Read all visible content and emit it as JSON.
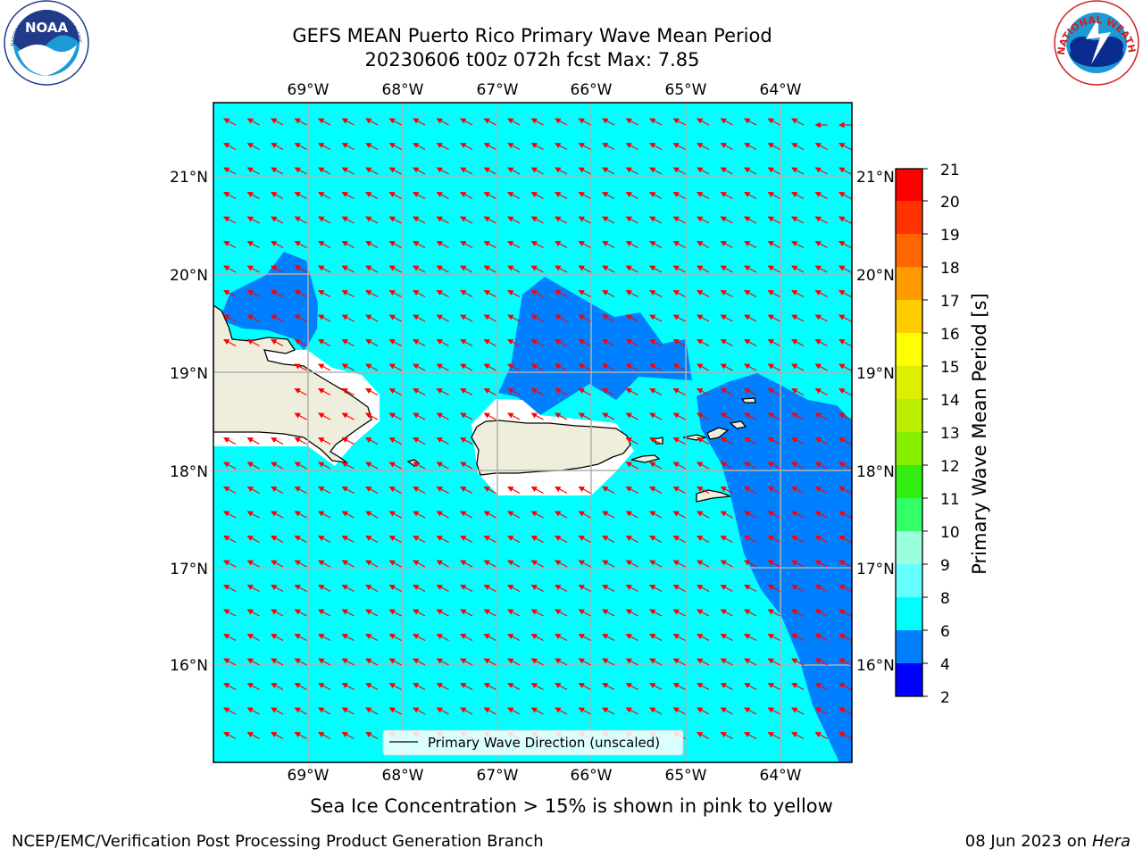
{
  "title": {
    "line1": "GEFS MEAN Puerto Rico Primary Wave Mean Period",
    "line2": "20230606 t00z 072h fcst   Max: 7.85"
  },
  "map": {
    "lon_ticks": [
      "69°W",
      "68°W",
      "67°W",
      "66°W",
      "65°W",
      "64°W"
    ],
    "lat_ticks": [
      "21°N",
      "20°N",
      "19°N",
      "18°N",
      "17°N",
      "16°N"
    ],
    "legend_label": "Primary Wave Direction (unscaled)",
    "background_color": "#00ffff",
    "land_color": "#efeddb",
    "low_period_color": "#0080ff",
    "arrow_color": "#ff0000",
    "grid_color": "#b0b0b0"
  },
  "colorbar": {
    "label": "Primary Wave Mean Period [s]",
    "ticks": [
      "2",
      "4",
      "6",
      "8",
      "9",
      "10",
      "11",
      "12",
      "13",
      "14",
      "15",
      "16",
      "17",
      "18",
      "19",
      "20",
      "21"
    ],
    "colors": [
      "#0000ff",
      "#0080ff",
      "#00ffff",
      "#66ffff",
      "#99ffdd",
      "#33ff66",
      "#33ee11",
      "#88ee00",
      "#bbee00",
      "#ddee00",
      "#ffff00",
      "#ffcc00",
      "#ff9900",
      "#ff6600",
      "#ff3300",
      "#ff0000"
    ]
  },
  "note": "Sea Ice Concentration > 15% is shown in pink to yellow",
  "footer": {
    "left": "NCEP/EMC/Verification Post Processing Product Generation Branch",
    "right_date": "08 Jun 2023 on",
    "right_host": "Hera"
  },
  "logos": {
    "noaa_text": "NOAA",
    "noaa_ring": "NATIONAL OCEANIC AND ATMOSPHERIC ADMINISTRATION · U.S. DEPARTMENT OF COMMERCE",
    "nws_ring": "NATIONAL WEATHER SERVICE"
  }
}
